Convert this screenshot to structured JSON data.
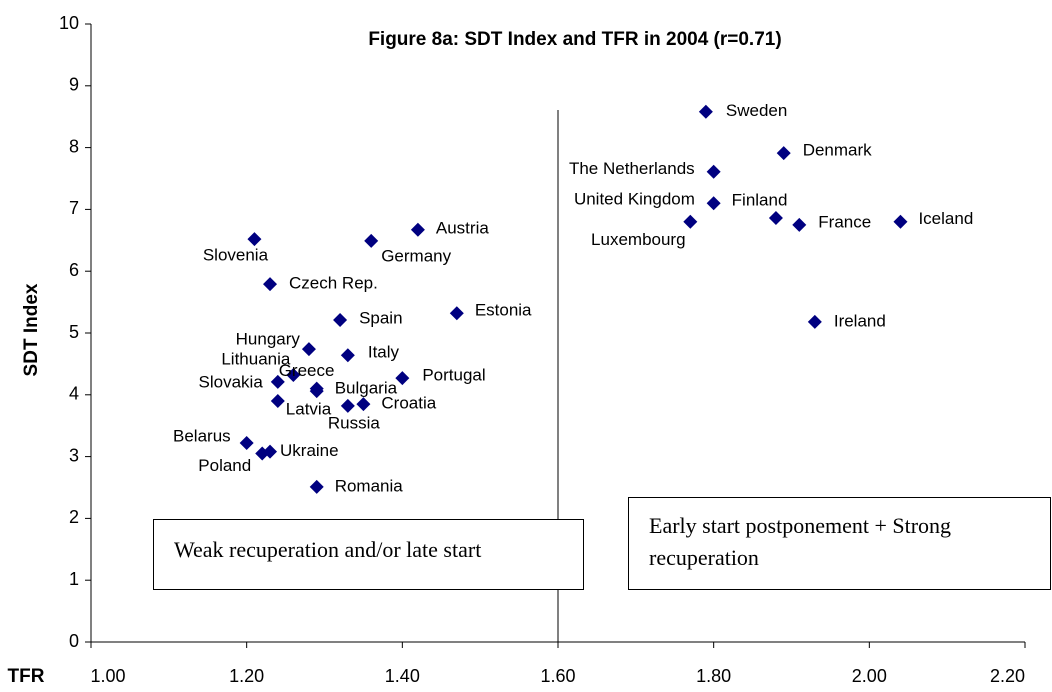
{
  "chart_data": {
    "type": "scatter",
    "title": "Figure 8a: SDT Index and TFR in 2004 (r=0.71)",
    "x_label": "TFR",
    "y_label": "SDT Index",
    "labels": [
      "Sweden",
      "Denmark",
      "The Netherlands",
      "Finland",
      "United Kingdom",
      "Luxembourg",
      "France",
      "Iceland",
      "Ireland",
      "Austria",
      "Slovenia",
      "Germany",
      "Czech Rep.",
      "Spain",
      "Estonia",
      "Hungary",
      "Italy",
      "Lithuania",
      "Greece",
      "Slovakia",
      "Bulgaria",
      "Portugal",
      "Latvia",
      "Croatia",
      "Russia",
      "Belarus",
      "Poland",
      "Ukraine",
      "Romania"
    ],
    "x": [
      1.79,
      1.89,
      1.8,
      1.8,
      1.88,
      1.77,
      1.91,
      2.04,
      1.93,
      1.42,
      1.21,
      1.36,
      1.23,
      1.32,
      1.47,
      1.28,
      1.33,
      1.26,
      1.29,
      1.24,
      1.29,
      1.4,
      1.24,
      1.35,
      1.33,
      1.2,
      1.22,
      1.23,
      1.29
    ],
    "series": [
      {
        "color": "#000080",
        "values": [
          8.58,
          7.91,
          7.61,
          7.1,
          6.86,
          6.8,
          6.75,
          6.8,
          5.18,
          6.67,
          6.52,
          6.49,
          5.79,
          5.21,
          5.32,
          4.74,
          4.64,
          4.32,
          4.1,
          4.21,
          4.06,
          4.27,
          3.9,
          3.85,
          3.82,
          3.22,
          3.05,
          3.08,
          2.51
        ]
      }
    ],
    "xlim": [
      1.0,
      2.2
    ],
    "xticks": [
      {
        "value": 1.0,
        "label": "1.00"
      },
      {
        "value": 1.2,
        "label": "1.20"
      },
      {
        "value": 1.4,
        "label": "1.40"
      },
      {
        "value": 1.6,
        "label": "1.60"
      },
      {
        "value": 1.8,
        "label": "1.80"
      },
      {
        "value": 2.0,
        "label": "2.00"
      },
      {
        "value": 2.2,
        "label": "2.20"
      }
    ],
    "ylim": [
      0,
      10
    ],
    "yticks": [
      0,
      1,
      2,
      3,
      4,
      5,
      6,
      7,
      8,
      9,
      10
    ],
    "vline": 1.6,
    "annotations": [
      "Weak recuperation and/or late start",
      "Early start postponement + Strong recuperation"
    ]
  }
}
